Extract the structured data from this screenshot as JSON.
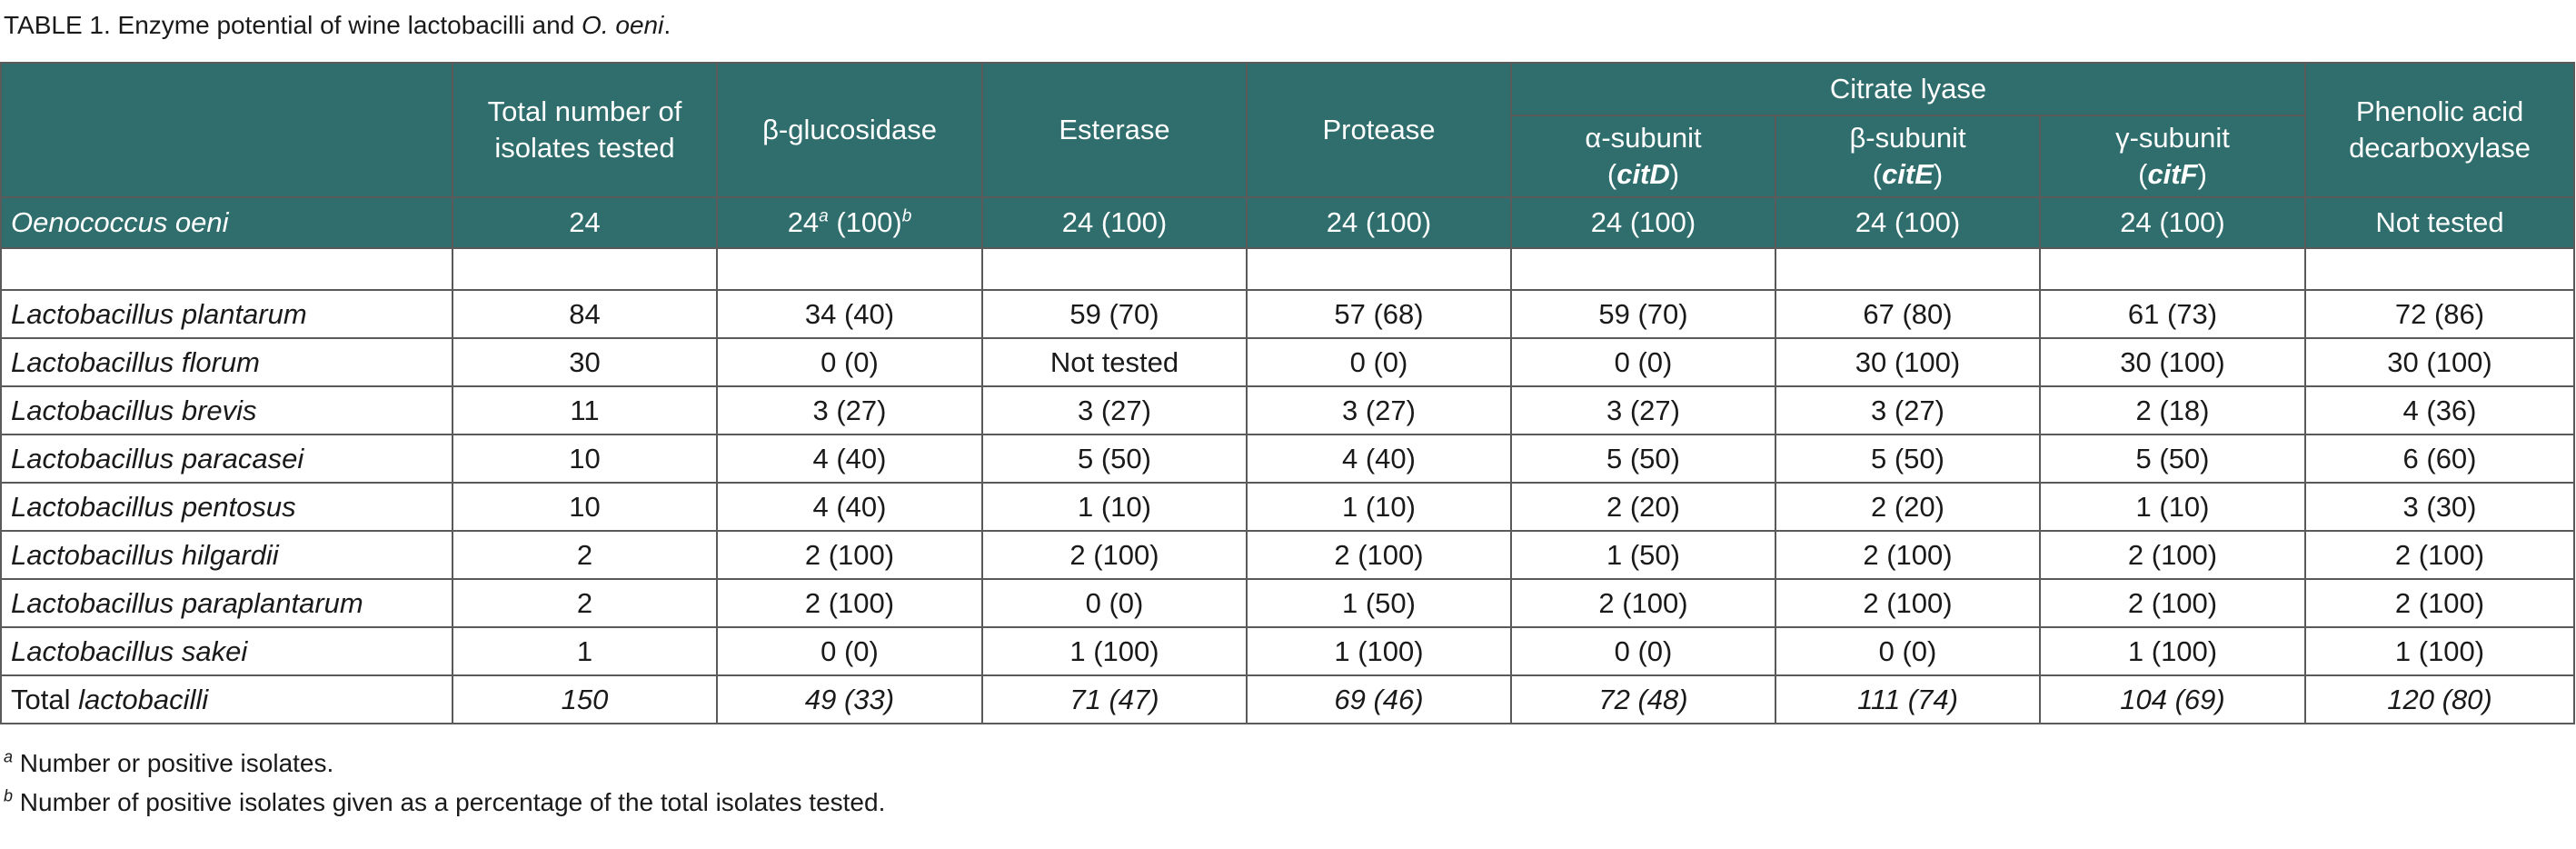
{
  "caption": {
    "prefix": "TABLE 1. Enzyme potential of wine lactobacilli and ",
    "species": "O. oeni",
    "suffix": "."
  },
  "headers": {
    "col0": "",
    "total": "Total number of isolates tested",
    "bglucosidase": "β-glucosidase",
    "esterase": "Esterase",
    "protease": "Protease",
    "citrate_lyase": "Citrate lyase",
    "alpha_label": "α-subunit",
    "alpha_gene": "citD",
    "beta_label": "β-subunit",
    "beta_gene": "citE",
    "gamma_label": "γ-subunit",
    "gamma_gene": "citF",
    "phenolic": "Phenolic acid decarboxylase"
  },
  "oeni_row": {
    "species": "Oenococcus oeni",
    "total": "24",
    "bglucosidase_value": "24",
    "bglucosidase_sup_a": "a",
    "bglucosidase_pct": " (100)",
    "bglucosidase_sup_b": "b",
    "esterase": "24 (100)",
    "protease": "24 (100)",
    "alpha": "24 (100)",
    "beta": "24 (100)",
    "gamma": "24 (100)",
    "phenolic": "Not tested"
  },
  "rows": [
    {
      "species": "Lactobacillus plantarum",
      "total": "84",
      "bglucosidase": "34 (40)",
      "esterase": "59 (70)",
      "protease": "57 (68)",
      "alpha": "59 (70)",
      "beta": "67 (80)",
      "gamma": "61 (73)",
      "phenolic": "72 (86)"
    },
    {
      "species": "Lactobacillus florum",
      "total": "30",
      "bglucosidase": "0 (0)",
      "esterase": "Not tested",
      "protease": "0 (0)",
      "alpha": "0 (0)",
      "beta": "30 (100)",
      "gamma": "30 (100)",
      "phenolic": "30 (100)"
    },
    {
      "species": "Lactobacillus brevis",
      "total": "11",
      "bglucosidase": "3 (27)",
      "esterase": "3 (27)",
      "protease": "3 (27)",
      "alpha": "3 (27)",
      "beta": "3 (27)",
      "gamma": "2 (18)",
      "phenolic": "4 (36)"
    },
    {
      "species": "Lactobacillus paracasei",
      "total": "10",
      "bglucosidase": "4 (40)",
      "esterase": "5 (50)",
      "protease": "4 (40)",
      "alpha": "5 (50)",
      "beta": "5 (50)",
      "gamma": "5 (50)",
      "phenolic": "6 (60)"
    },
    {
      "species": "Lactobacillus pentosus",
      "total": "10",
      "bglucosidase": "4 (40)",
      "esterase": "1 (10)",
      "protease": "1 (10)",
      "alpha": "2 (20)",
      "beta": "2 (20)",
      "gamma": "1 (10)",
      "phenolic": "3 (30)"
    },
    {
      "species": "Lactobacillus hilgardii",
      "total": "2",
      "bglucosidase": "2 (100)",
      "esterase": "2 (100)",
      "protease": "2 (100)",
      "alpha": "1 (50)",
      "beta": "2 (100)",
      "gamma": "2 (100)",
      "phenolic": "2 (100)"
    },
    {
      "species": "Lactobacillus paraplantarum",
      "total": "2",
      "bglucosidase": "2 (100)",
      "esterase": "0 (0)",
      "protease": "1 (50)",
      "alpha": "2 (100)",
      "beta": "2 (100)",
      "gamma": "2 (100)",
      "phenolic": "2 (100)"
    },
    {
      "species": "Lactobacillus sakei",
      "total": "1",
      "bglucosidase": "0 (0)",
      "esterase": "1 (100)",
      "protease": "1 (100)",
      "alpha": "0 (0)",
      "beta": "0 (0)",
      "gamma": "1 (100)",
      "phenolic": "1 (100)"
    }
  ],
  "total_row": {
    "label_prefix": "Total ",
    "label_italic": "lactobacilli",
    "total": "150",
    "bglucosidase": "49 (33)",
    "esterase": "71 (47)",
    "protease": "69 (46)",
    "alpha": "72 (48)",
    "beta": "111 (74)",
    "gamma": "104 (69)",
    "phenolic": "120 (80)"
  },
  "footnotes": [
    {
      "mark": "a",
      "text": " Number or positive isolates."
    },
    {
      "mark": "b",
      "text": " Number of positive isolates given as a percentage of the total isolates tested."
    }
  ],
  "colors": {
    "header_bg": "#2f6e6d",
    "header_text": "#ffffff",
    "border": "#5a5a5a"
  }
}
